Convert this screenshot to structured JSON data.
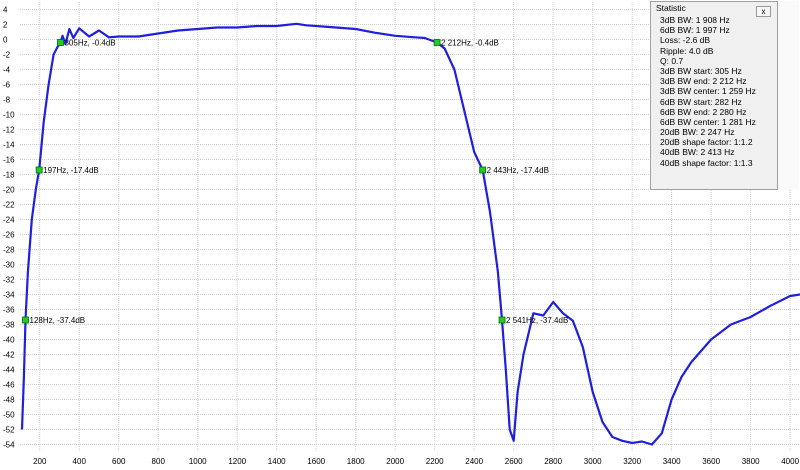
{
  "chart_data": {
    "type": "line",
    "xlim": [
      100,
      4050
    ],
    "ylim": [
      -55,
      5
    ],
    "x_ticks": [
      "200",
      "400",
      "600",
      "800",
      "1000",
      "1200",
      "1400",
      "1600",
      "1800",
      "2000",
      "2200",
      "2400",
      "2600",
      "2800",
      "3000",
      "3200",
      "3400",
      "3600",
      "3800",
      "4000"
    ],
    "y_ticks": [
      "4",
      "2",
      "0",
      "-2",
      "-4",
      "-6",
      "-8",
      "-10",
      "-12",
      "-14",
      "-16",
      "-18",
      "-20",
      "-22",
      "-24",
      "-26",
      "-28",
      "-30",
      "-32",
      "-34",
      "-36",
      "-38",
      "-40",
      "-42",
      "-44",
      "-46",
      "-48",
      "-50",
      "-52",
      "-54"
    ],
    "line_color": "#1f1fe0",
    "marker_color": "#22cc22",
    "grid": true,
    "series": [
      {
        "x": [
          110,
          120,
          128,
          140,
          160,
          180,
          197,
          220,
          245,
          270,
          290,
          305,
          315,
          330,
          350,
          370,
          400,
          450,
          500,
          550,
          600,
          700,
          800,
          900,
          1000,
          1100,
          1200,
          1300,
          1400,
          1500,
          1550,
          1600,
          1700,
          1800,
          1900,
          2000,
          2100,
          2150,
          2212,
          2250,
          2300,
          2350,
          2400,
          2443,
          2480,
          2520,
          2541,
          2560,
          2580,
          2600,
          2620,
          2650,
          2700,
          2750,
          2800,
          2850,
          2900,
          2950,
          3000,
          3050,
          3100,
          3150,
          3200,
          3250,
          3300,
          3350,
          3400,
          3450,
          3500,
          3600,
          3700,
          3800,
          3900,
          4000,
          4050
        ],
        "y": [
          -52,
          -45,
          -37.4,
          -31,
          -24,
          -20,
          -17.4,
          -11,
          -6,
          -2,
          -1,
          -0.4,
          0.5,
          -0.6,
          1.4,
          0.2,
          1.5,
          0.4,
          1.2,
          0.3,
          0.4,
          0.4,
          0.8,
          1.2,
          1.4,
          1.6,
          1.6,
          1.8,
          1.8,
          2.1,
          1.9,
          1.8,
          1.6,
          1.4,
          0.9,
          0.5,
          0.3,
          0.2,
          -0.4,
          -1.2,
          -4,
          -9.5,
          -15,
          -17.4,
          -23,
          -31,
          -37.4,
          -44,
          -52,
          -53.5,
          -47,
          -42,
          -36.5,
          -36.8,
          -35,
          -36.5,
          -37.5,
          -41,
          -47,
          -51,
          -53,
          -53.5,
          -53.8,
          -53.6,
          -54,
          -52.5,
          -48,
          -45,
          -43,
          -40,
          -38,
          -37,
          -35.5,
          -34.2,
          -34
        ]
      }
    ],
    "markers": [
      {
        "x": 305,
        "y": -0.4,
        "label": "305Hz, -0.4dB"
      },
      {
        "x": 197,
        "y": -17.4,
        "label": "197Hz, -17.4dB"
      },
      {
        "x": 128,
        "y": -37.4,
        "label": "128Hz, -37.4dB"
      },
      {
        "x": 2212,
        "y": -0.4,
        "label": "2 212Hz, -0.4dB"
      },
      {
        "x": 2443,
        "y": -17.4,
        "label": "2 443Hz, -17.4dB"
      },
      {
        "x": 2541,
        "y": -37.4,
        "label": "2 541Hz, -37.4dB"
      }
    ]
  },
  "statistic": {
    "title": "Statistic",
    "close_label": "x",
    "lines": [
      "3dB BW: 1 908 Hz",
      "6dB BW: 1 997 Hz",
      "Loss: -2.6 dB",
      "Ripple: 4.0 dB",
      "Q: 0.7",
      "3dB BW start: 305 Hz",
      "3dB BW end: 2 212 Hz",
      "3dB BW center: 1 259 Hz",
      "6dB BW start: 282 Hz",
      "6dB BW end: 2 280 Hz",
      "6dB BW center: 1 281 Hz",
      "20dB BW: 2 247 Hz",
      "20dB shape factor: 1:1.2",
      "40dB BW: 2 413 Hz",
      "40dB shape factor: 1:1.3"
    ]
  }
}
